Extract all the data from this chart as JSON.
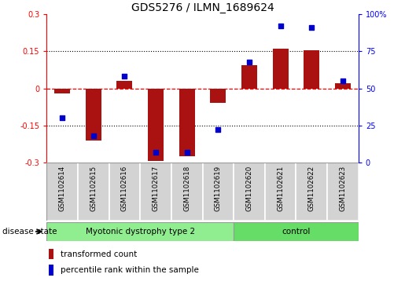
{
  "title": "GDS5276 / ILMN_1689624",
  "samples": [
    "GSM1102614",
    "GSM1102615",
    "GSM1102616",
    "GSM1102617",
    "GSM1102618",
    "GSM1102619",
    "GSM1102620",
    "GSM1102621",
    "GSM1102622",
    "GSM1102623"
  ],
  "transformed_count": [
    -0.02,
    -0.21,
    0.03,
    -0.295,
    -0.275,
    -0.06,
    0.095,
    0.16,
    0.155,
    0.02
  ],
  "percentile_rank": [
    30,
    18,
    58,
    7,
    7,
    22,
    68,
    92,
    91,
    55
  ],
  "groups": [
    {
      "label": "Myotonic dystrophy type 2",
      "start": 0,
      "end": 6,
      "color": "#90EE90"
    },
    {
      "label": "control",
      "start": 6,
      "end": 10,
      "color": "#66DD66"
    }
  ],
  "bar_color": "#AA1111",
  "dot_color": "#0000CC",
  "ylim_left": [
    -0.3,
    0.3
  ],
  "ylim_right": [
    0,
    100
  ],
  "yticks_left": [
    -0.3,
    -0.15,
    0,
    0.15,
    0.3
  ],
  "yticks_right": [
    0,
    25,
    50,
    75,
    100
  ],
  "ytick_labels_left": [
    "-0.3",
    "-0.15",
    "0",
    "0.15",
    "0.3"
  ],
  "ytick_labels_right": [
    "0",
    "25",
    "50",
    "75",
    "100%"
  ],
  "legend_bar_label": "transformed count",
  "legend_dot_label": "percentile rank within the sample",
  "disease_state_label": "disease state",
  "label_bg_color": "#D3D3D3",
  "plot_bg_color": "#FFFFFF"
}
